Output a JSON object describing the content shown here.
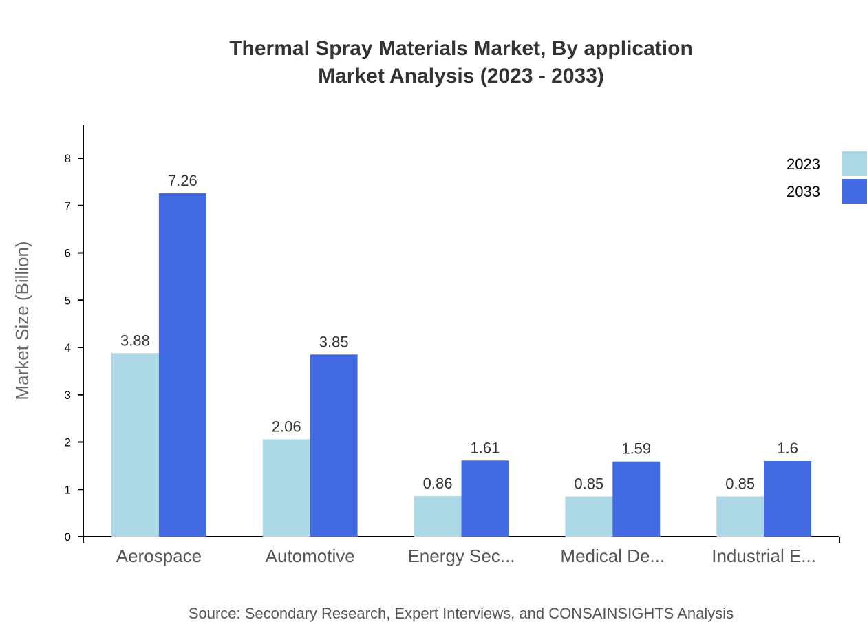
{
  "chart_data": {
    "type": "bar",
    "title": "Thermal Spray Materials Market, By application",
    "subtitle": "Market Analysis (2023 - 2033)",
    "xlabel": "",
    "ylabel": "Market Size (Billion)",
    "ylim": [
      0,
      8.7
    ],
    "yticks": [
      0,
      1,
      2,
      3,
      4,
      5,
      6,
      7,
      8
    ],
    "categories": [
      "Aerospace",
      "Automotive",
      "Energy Sec...",
      "Medical De...",
      "Industrial E..."
    ],
    "series": [
      {
        "name": "2023",
        "color": "#ADD8E6",
        "values": [
          3.88,
          2.06,
          0.86,
          0.85,
          0.85
        ]
      },
      {
        "name": "2033",
        "color": "#4169E1",
        "values": [
          7.26,
          3.85,
          1.61,
          1.59,
          1.6
        ]
      }
    ],
    "legend_position": "top-right",
    "grid": false,
    "source": "Source: Secondary Research, Expert Interviews, and CONSAINSIGHTS Analysis"
  }
}
